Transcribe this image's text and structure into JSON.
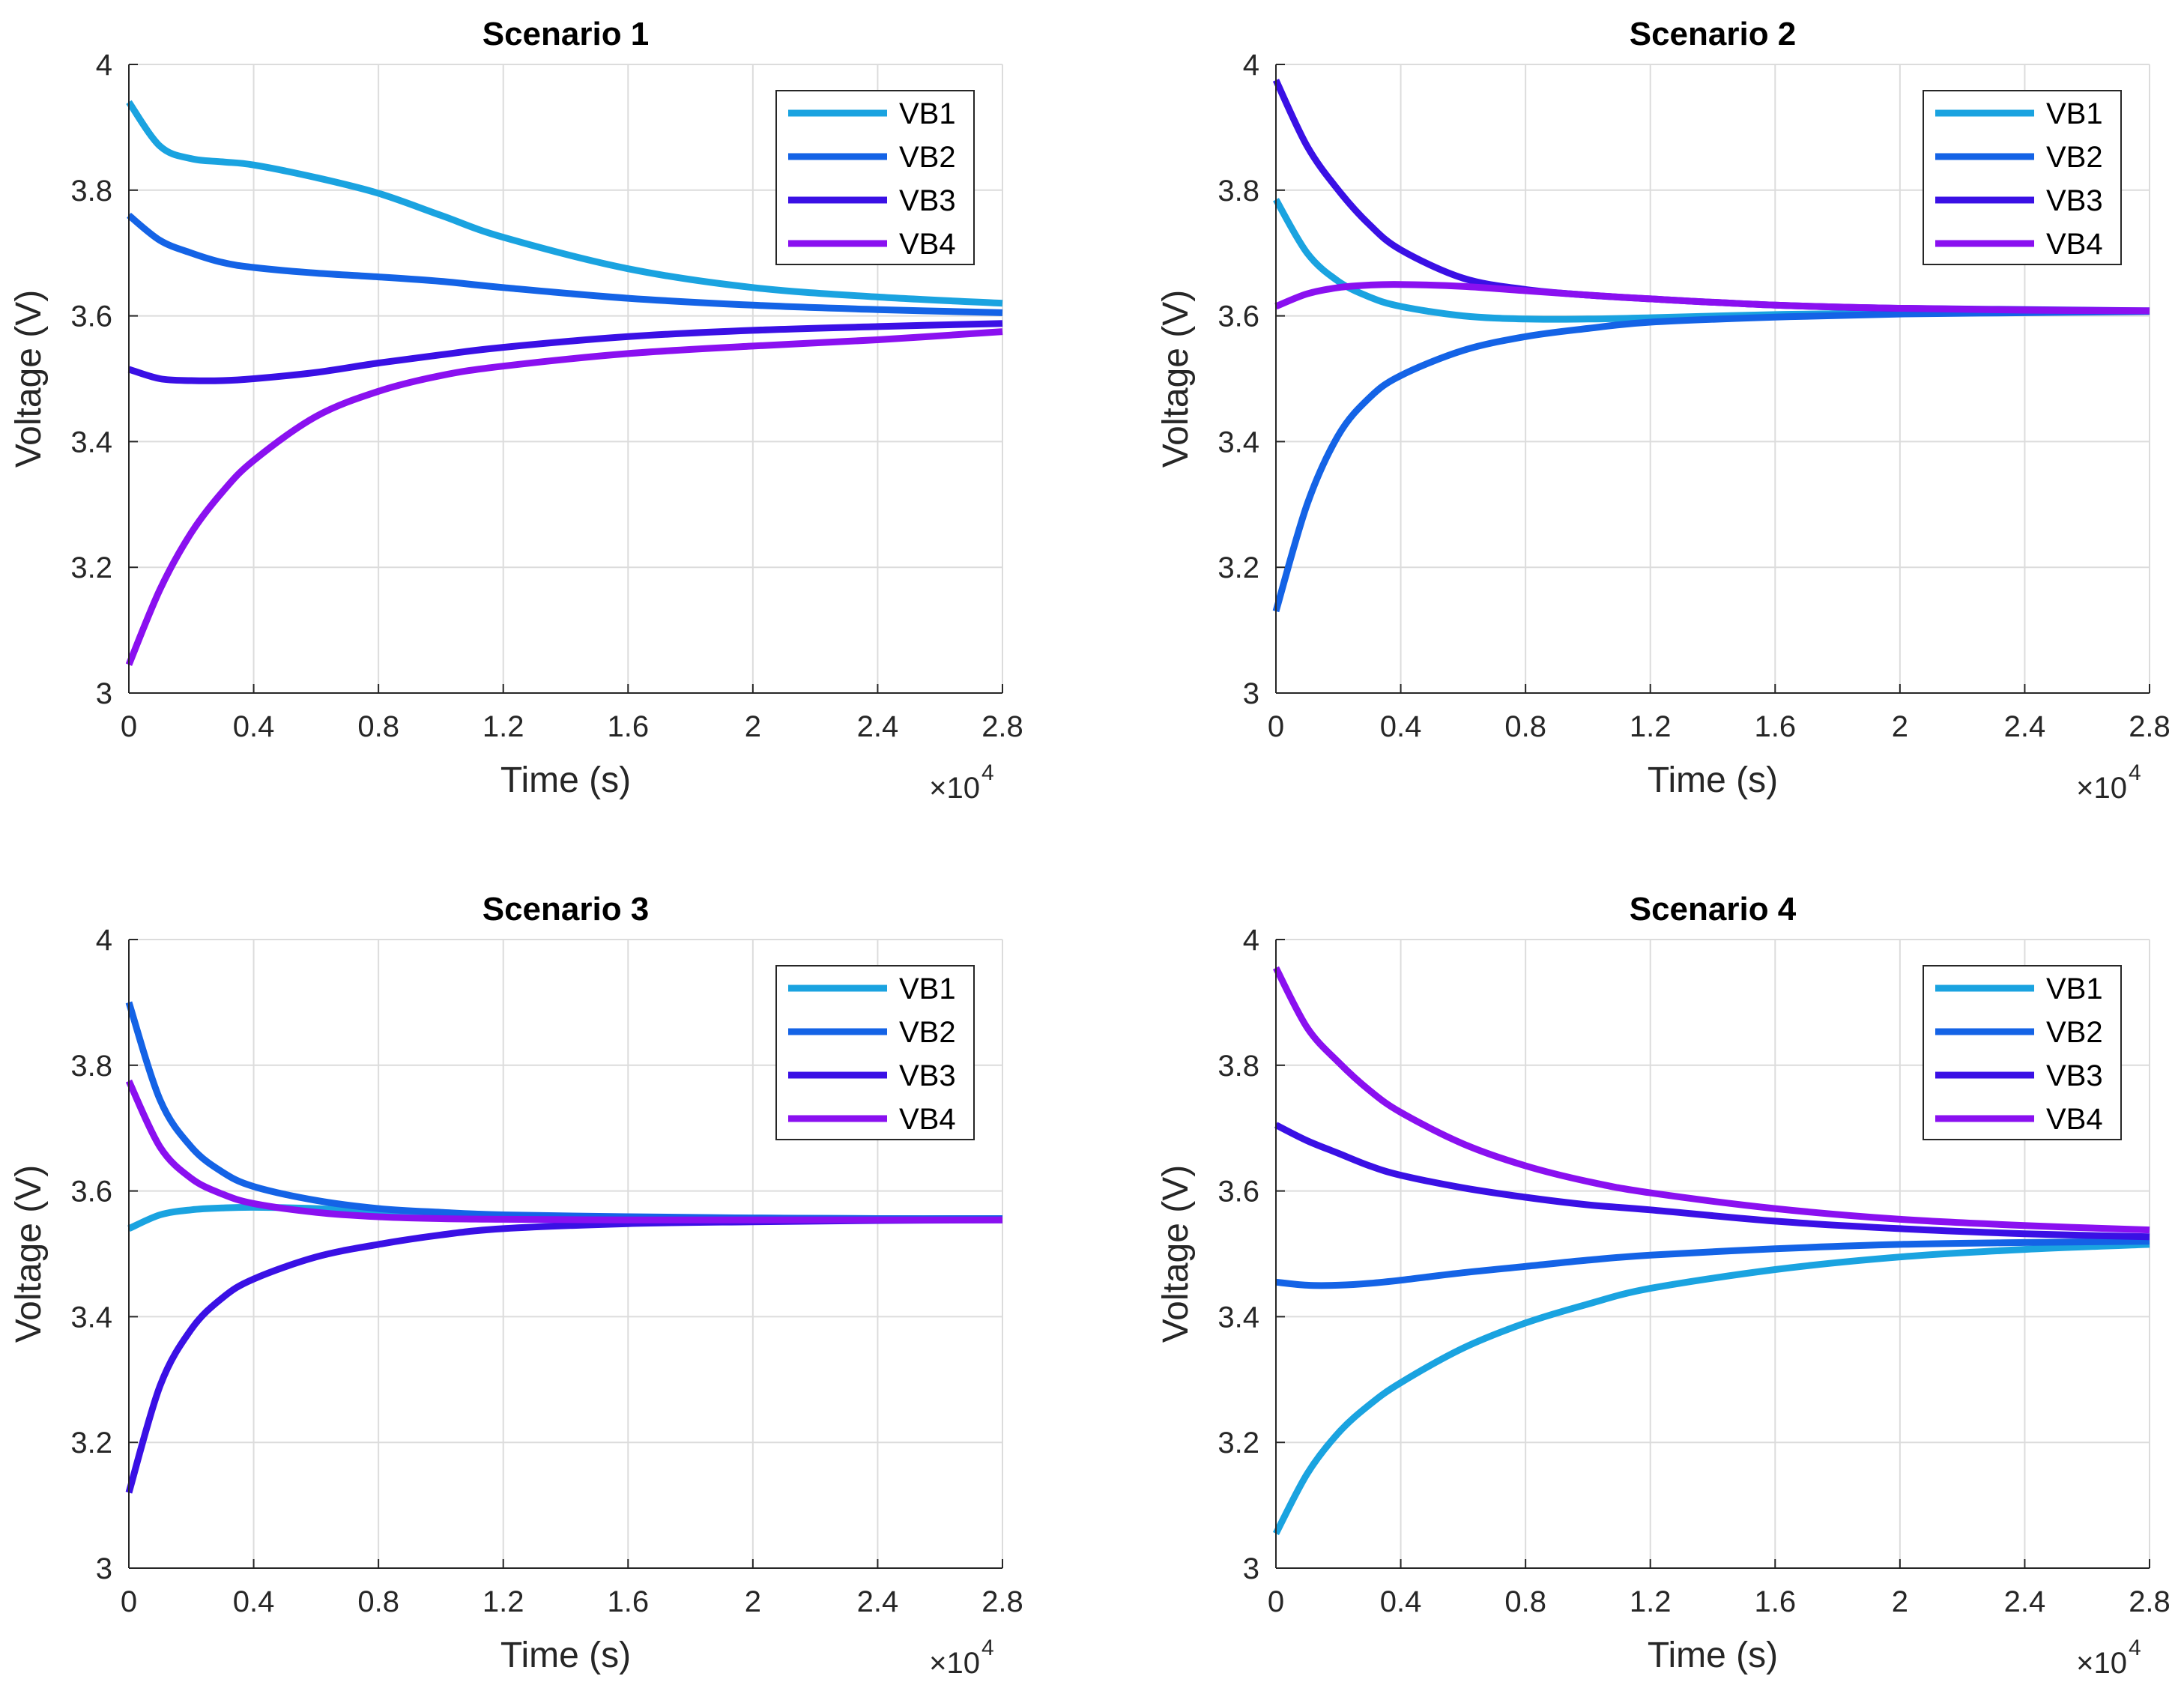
{
  "chart_data": [
    {
      "type": "line",
      "title": "Scenario 1",
      "xlabel": "Time (s)",
      "ylabel": "Voltage (V)",
      "x_multiplier_label": "×10",
      "x_multiplier_exp": "4",
      "xlim": [
        0,
        2.8
      ],
      "ylim": [
        3,
        4
      ],
      "xticks": [
        0,
        0.4,
        0.8,
        1.2,
        1.6,
        2,
        2.4,
        2.8
      ],
      "yticks": [
        3,
        3.2,
        3.4,
        3.6,
        3.8,
        4
      ],
      "grid": true,
      "legend_position": "top-right",
      "x": [
        0,
        0.1,
        0.2,
        0.3,
        0.4,
        0.6,
        0.8,
        1.0,
        1.2,
        1.6,
        2.0,
        2.4,
        2.8
      ],
      "series": [
        {
          "name": "VB1",
          "color": "#1AA3E0",
          "values": [
            3.94,
            3.87,
            3.85,
            3.845,
            3.84,
            3.82,
            3.795,
            3.76,
            3.725,
            3.675,
            3.645,
            3.63,
            3.62
          ]
        },
        {
          "name": "VB2",
          "color": "#1463E6",
          "values": [
            3.76,
            3.72,
            3.7,
            3.685,
            3.677,
            3.668,
            3.662,
            3.655,
            3.645,
            3.628,
            3.617,
            3.61,
            3.605
          ]
        },
        {
          "name": "VB3",
          "color": "#3A10E5",
          "values": [
            3.515,
            3.5,
            3.497,
            3.497,
            3.5,
            3.51,
            3.525,
            3.538,
            3.55,
            3.567,
            3.577,
            3.583,
            3.588
          ]
        },
        {
          "name": "VB4",
          "color": "#8A10F0",
          "values": [
            3.045,
            3.165,
            3.255,
            3.32,
            3.37,
            3.44,
            3.48,
            3.505,
            3.52,
            3.54,
            3.552,
            3.562,
            3.575
          ]
        }
      ]
    },
    {
      "type": "line",
      "title": "Scenario 2",
      "xlabel": "Time (s)",
      "ylabel": "Voltage (V)",
      "x_multiplier_label": "×10",
      "x_multiplier_exp": "4",
      "xlim": [
        0,
        2.8
      ],
      "ylim": [
        3,
        4
      ],
      "xticks": [
        0,
        0.4,
        0.8,
        1.2,
        1.6,
        2,
        2.4,
        2.8
      ],
      "yticks": [
        3,
        3.2,
        3.4,
        3.6,
        3.8,
        4
      ],
      "grid": true,
      "legend_position": "top-right",
      "x": [
        0,
        0.1,
        0.2,
        0.3,
        0.4,
        0.6,
        0.8,
        1.0,
        1.2,
        1.6,
        2.0,
        2.4,
        2.8
      ],
      "series": [
        {
          "name": "VB1",
          "color": "#1AA3E0",
          "values": [
            3.785,
            3.7,
            3.655,
            3.63,
            3.615,
            3.6,
            3.595,
            3.595,
            3.597,
            3.602,
            3.605,
            3.607,
            3.608
          ]
        },
        {
          "name": "VB2",
          "color": "#1463E6",
          "values": [
            3.13,
            3.3,
            3.41,
            3.47,
            3.505,
            3.545,
            3.567,
            3.58,
            3.59,
            3.598,
            3.603,
            3.605,
            3.607
          ]
        },
        {
          "name": "VB3",
          "color": "#3A10E5",
          "values": [
            3.975,
            3.87,
            3.8,
            3.745,
            3.705,
            3.66,
            3.642,
            3.633,
            3.627,
            3.617,
            3.612,
            3.61,
            3.608
          ]
        },
        {
          "name": "VB4",
          "color": "#8A10F0",
          "values": [
            3.615,
            3.635,
            3.645,
            3.649,
            3.65,
            3.647,
            3.64,
            3.633,
            3.627,
            3.617,
            3.612,
            3.609,
            3.608
          ]
        }
      ]
    },
    {
      "type": "line",
      "title": "Scenario 3",
      "xlabel": "Time (s)",
      "ylabel": "Voltage (V)",
      "x_multiplier_label": "×10",
      "x_multiplier_exp": "4",
      "xlim": [
        0,
        2.8
      ],
      "ylim": [
        3,
        4
      ],
      "xticks": [
        0,
        0.4,
        0.8,
        1.2,
        1.6,
        2,
        2.4,
        2.8
      ],
      "yticks": [
        3,
        3.2,
        3.4,
        3.6,
        3.8,
        4
      ],
      "grid": true,
      "legend_position": "top-right",
      "x": [
        0,
        0.1,
        0.2,
        0.3,
        0.4,
        0.6,
        0.8,
        1.0,
        1.2,
        1.6,
        2.0,
        2.4,
        2.8
      ],
      "series": [
        {
          "name": "VB1",
          "color": "#1AA3E0",
          "values": [
            3.54,
            3.562,
            3.57,
            3.573,
            3.574,
            3.572,
            3.567,
            3.563,
            3.56,
            3.558,
            3.557,
            3.556,
            3.556
          ]
        },
        {
          "name": "VB2",
          "color": "#1463E6",
          "values": [
            3.9,
            3.745,
            3.67,
            3.63,
            3.607,
            3.585,
            3.572,
            3.566,
            3.562,
            3.559,
            3.557,
            3.556,
            3.556
          ]
        },
        {
          "name": "VB3",
          "color": "#3A10E5",
          "values": [
            3.12,
            3.29,
            3.38,
            3.43,
            3.46,
            3.495,
            3.515,
            3.53,
            3.54,
            3.548,
            3.551,
            3.553,
            3.554
          ]
        },
        {
          "name": "VB4",
          "color": "#8A10F0",
          "values": [
            3.775,
            3.67,
            3.62,
            3.595,
            3.58,
            3.566,
            3.559,
            3.556,
            3.555,
            3.554,
            3.554,
            3.554,
            3.554
          ]
        }
      ]
    },
    {
      "type": "line",
      "title": "Scenario 4",
      "xlabel": "Time (s)",
      "ylabel": "Voltage (V)",
      "x_multiplier_label": "×10",
      "x_multiplier_exp": "4",
      "xlim": [
        0,
        2.8
      ],
      "ylim": [
        3,
        4
      ],
      "xticks": [
        0,
        0.4,
        0.8,
        1.2,
        1.6,
        2,
        2.4,
        2.8
      ],
      "yticks": [
        3,
        3.2,
        3.4,
        3.6,
        3.8,
        4
      ],
      "grid": true,
      "legend_position": "top-right",
      "x": [
        0,
        0.1,
        0.2,
        0.3,
        0.4,
        0.6,
        0.8,
        1.0,
        1.2,
        1.6,
        2.0,
        2.4,
        2.8
      ],
      "series": [
        {
          "name": "VB1",
          "color": "#1AA3E0",
          "values": [
            3.055,
            3.15,
            3.215,
            3.26,
            3.295,
            3.35,
            3.39,
            3.42,
            3.445,
            3.475,
            3.495,
            3.507,
            3.515
          ]
        },
        {
          "name": "VB2",
          "color": "#1463E6",
          "values": [
            3.455,
            3.45,
            3.45,
            3.453,
            3.458,
            3.47,
            3.48,
            3.49,
            3.498,
            3.508,
            3.515,
            3.518,
            3.52
          ]
        },
        {
          "name": "VB3",
          "color": "#3A10E5",
          "values": [
            3.705,
            3.68,
            3.66,
            3.64,
            3.625,
            3.605,
            3.59,
            3.578,
            3.57,
            3.552,
            3.54,
            3.532,
            3.527
          ]
        },
        {
          "name": "VB4",
          "color": "#8A10F0",
          "values": [
            3.955,
            3.86,
            3.805,
            3.76,
            3.725,
            3.675,
            3.64,
            3.615,
            3.597,
            3.572,
            3.555,
            3.545,
            3.538
          ]
        }
      ]
    }
  ]
}
